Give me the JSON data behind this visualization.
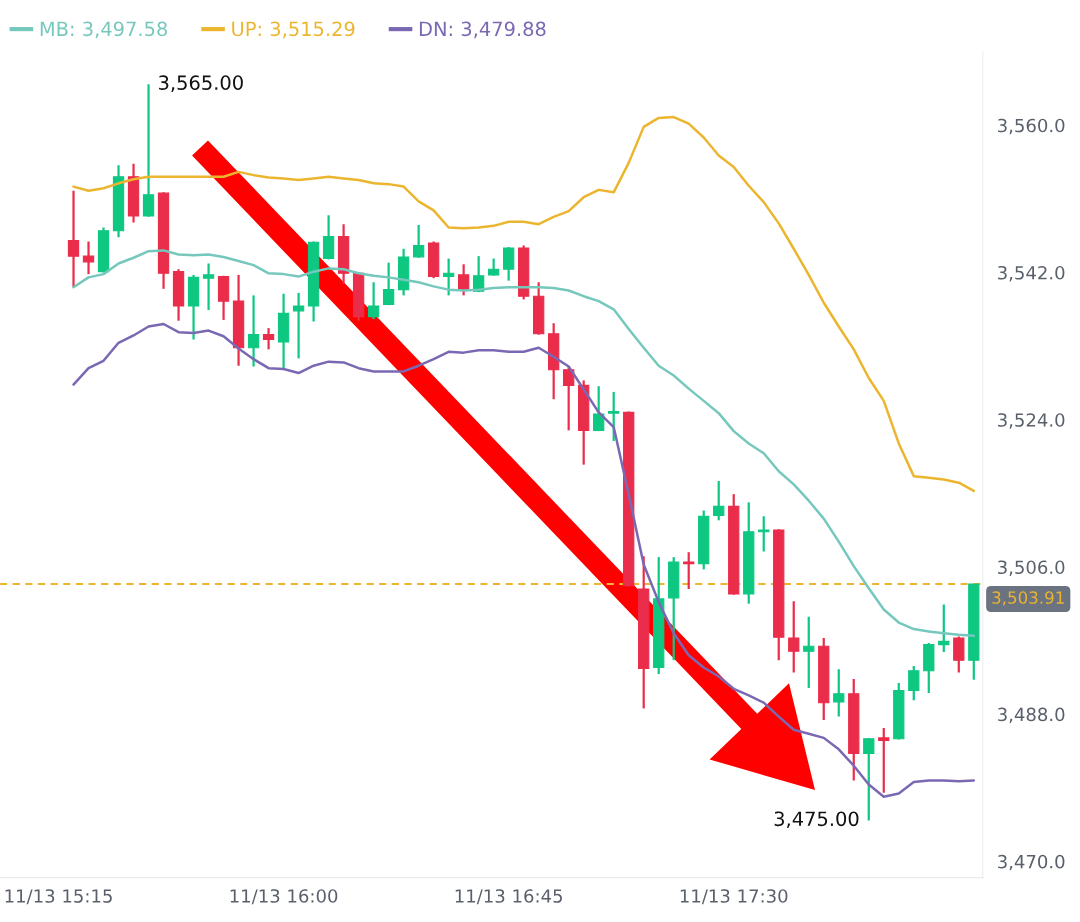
{
  "chart_data": {
    "type": "candlestick",
    "categories": [
      "11/13 15:15",
      null,
      null,
      null,
      null,
      null,
      null,
      null,
      null,
      null,
      null,
      null,
      null,
      null,
      null,
      "11/13 16:00",
      null,
      null,
      null,
      null,
      null,
      null,
      null,
      null,
      null,
      null,
      null,
      null,
      null,
      null,
      "11/13 16:45",
      null,
      null,
      null,
      null,
      null,
      null,
      null,
      null,
      null,
      null,
      null,
      null,
      null,
      null,
      "11/13 17:30",
      null,
      null,
      null,
      null,
      null,
      null,
      null,
      null,
      null,
      null,
      null,
      null,
      null,
      null,
      null,
      null
    ],
    "ohlc": [
      null,
      [
        3545.9,
        3552.0,
        3540.2,
        3544.0
      ],
      [
        3544.0,
        3545.8,
        3541.8,
        3543.3
      ],
      [
        3542.1,
        3547.5,
        3542.0,
        3547.1
      ],
      [
        3547.1,
        3555.1,
        3546.3,
        3553.7
      ],
      [
        3553.7,
        3555.3,
        3548.1,
        3548.9
      ],
      [
        3548.9,
        3565.0,
        3548.8,
        3551.5
      ],
      [
        3551.7,
        3551.8,
        3540.0,
        3541.9
      ],
      [
        3542.1,
        3542.4,
        3536.1,
        3537.9
      ],
      [
        3537.9,
        3541.7,
        3533.8,
        3541.4
      ],
      [
        3541.3,
        3543.1,
        3537.4,
        3541.7
      ],
      [
        3541.5,
        3541.6,
        3536.2,
        3538.5
      ],
      [
        3538.5,
        3541.7,
        3530.6,
        3532.8
      ],
      [
        3532.8,
        3539.2,
        3530.5,
        3534.4
      ],
      [
        3534.4,
        3535.2,
        3532.6,
        3533.8
      ],
      [
        3533.5,
        3539.4,
        3530.3,
        3537.0
      ],
      [
        3537.3,
        3539.5,
        3531.5,
        3537.9
      ],
      [
        3537.9,
        3545.8,
        3536.0,
        3545.7
      ],
      [
        3543.7,
        3549.0,
        3543.6,
        3546.4
      ],
      [
        3546.4,
        3547.9,
        3540.6,
        3541.9
      ],
      [
        3541.9,
        3542.0,
        3536.1,
        3536.6
      ],
      [
        3536.6,
        3540.8,
        3536.3,
        3537.9
      ],
      [
        3538.1,
        3543.2,
        3538.0,
        3539.9
      ],
      [
        3539.9,
        3544.9,
        3539.2,
        3543.9
      ],
      [
        3543.9,
        3547.8,
        3543.8,
        3545.3
      ],
      [
        3545.6,
        3545.8,
        3541.3,
        3541.5
      ],
      [
        3541.5,
        3543.7,
        3539.2,
        3541.9
      ],
      [
        3541.7,
        3543.0,
        3539.2,
        3539.9
      ],
      [
        3539.7,
        3544.0,
        3539.6,
        3541.6
      ],
      [
        3541.7,
        3543.7,
        3541.6,
        3542.4
      ],
      [
        3542.4,
        3545.1,
        3541.0,
        3545.0
      ],
      [
        3545.0,
        3545.3,
        3538.7,
        3539.1
      ],
      [
        3539.1,
        3540.8,
        3534.4,
        3534.5
      ],
      [
        3534.5,
        3535.8,
        3526.5,
        3530.1
      ],
      [
        3530.1,
        3530.5,
        3522.7,
        3528.2
      ],
      [
        3528.2,
        3528.8,
        3518.5,
        3522.7
      ],
      [
        3522.7,
        3528.1,
        3522.6,
        3524.7
      ],
      [
        3524.8,
        3527.4,
        3521.4,
        3525.0
      ],
      [
        3524.9,
        3525.0,
        3503.6,
        3503.7
      ],
      [
        3503.3,
        3507.3,
        3488.7,
        3493.6
      ],
      [
        3493.7,
        3507.2,
        3492.9,
        3502.1
      ],
      [
        3502.2,
        3507.2,
        3494.6,
        3506.6
      ],
      [
        3506.6,
        3507.8,
        3503.3,
        3506.4
      ],
      [
        3506.4,
        3512.9,
        3505.7,
        3512.2
      ],
      [
        3512.3,
        3516.5,
        3511.7,
        3513.4
      ],
      [
        3513.4,
        3514.9,
        3502.6,
        3502.7
      ],
      [
        3502.7,
        3513.9,
        3501.5,
        3510.3
      ],
      [
        3510.3,
        3512.2,
        3507.9,
        3510.5
      ],
      [
        3510.5,
        3510.6,
        3494.6,
        3497.4
      ],
      [
        3497.3,
        3501.8,
        3493.1,
        3495.7
      ],
      [
        3495.7,
        3499.9,
        3491.2,
        3496.3
      ],
      [
        3496.3,
        3497.3,
        3487.3,
        3489.4
      ],
      [
        3489.5,
        3493.5,
        3487.7,
        3490.5
      ],
      [
        3490.5,
        3492.3,
        3479.9,
        3483.2
      ],
      [
        3483.2,
        3485.1,
        3475.0,
        3485.0
      ],
      [
        3485.1,
        3486.3,
        3478.4,
        3484.8
      ],
      [
        3485.0,
        3491.8,
        3484.9,
        3490.9
      ],
      [
        3490.9,
        3493.9,
        3489.7,
        3493.3
      ],
      [
        3493.3,
        3496.7,
        3490.6,
        3496.5
      ],
      [
        3496.5,
        3501.4,
        3495.6,
        3496.9
      ],
      [
        3497.3,
        3497.5,
        3493.1,
        3494.6
      ],
      [
        3494.6,
        3503.91,
        3492.2,
        3503.91
      ]
    ],
    "colors": [
      null,
      "#ea2d4b",
      "#ea2d4b",
      "#0ec882",
      "#0ec882",
      "#ea2d4b",
      "#0ec882",
      "#ea2d4b",
      "#ea2d4b",
      "#0ec882",
      "#0ec882",
      "#ea2d4b",
      "#ea2d4b",
      "#0ec882",
      "#ea2d4b",
      "#0ec882",
      "#0ec882",
      "#0ec882",
      "#0ec882",
      "#ea2d4b",
      "#ea2d4b",
      "#0ec882",
      "#0ec882",
      "#0ec882",
      "#0ec882",
      "#ea2d4b",
      "#0ec882",
      "#ea2d4b",
      "#0ec882",
      "#0ec882",
      "#0ec882",
      "#ea2d4b",
      "#ea2d4b",
      "#ea2d4b",
      "#ea2d4b",
      "#ea2d4b",
      "#0ec882",
      "#0ec882",
      "#ea2d4b",
      "#ea2d4b",
      "#0ec882",
      "#0ec882",
      "#ea2d4b",
      "#0ec882",
      "#0ec882",
      "#ea2d4b",
      "#0ec882",
      "#0ec882",
      "#ea2d4b",
      "#ea2d4b",
      "#0ec882",
      "#ea2d4b",
      "#0ec882",
      "#ea2d4b",
      "#0ec882",
      "#ea2d4b",
      "#0ec882",
      "#0ec882",
      "#0ec882",
      "#0ec882",
      "#ea2d4b",
      "#0ec882"
    ],
    "series": [
      {
        "name": "MB: 3,497.58",
        "type": "line",
        "color": "#76c8bd",
        "values": [
          null,
          3540.2,
          3541.4,
          3541.8,
          3543.1,
          3543.8,
          3544.6,
          3544.7,
          3544.2,
          3544.1,
          3544.2,
          3543.9,
          3543.4,
          3542.9,
          3541.9,
          3541.8,
          3541.5,
          3542.1,
          3542.5,
          3542.4,
          3541.9,
          3541.6,
          3541.4,
          3541.1,
          3540.8,
          3540.3,
          3539.9,
          3539.8,
          3539.9,
          3540.1,
          3540.2,
          3540.2,
          3540.2,
          3540.1,
          3539.8,
          3539.1,
          3538.5,
          3537.5,
          3535.1,
          3532.8,
          3530.6,
          3529.4,
          3527.8,
          3526.3,
          3524.8,
          3522.6,
          3521.1,
          3519.9,
          3517.7,
          3516.1,
          3514.1,
          3511.9,
          3509.1,
          3506.1,
          3503.4,
          3500.8,
          3499.2,
          3498.4,
          3498.1,
          3497.9,
          3497.7,
          3497.58
        ]
      },
      {
        "name": "UP: 3,515.29",
        "type": "line",
        "color": "#ecb52f",
        "values": [
          null,
          3552.5,
          3552.0,
          3552.3,
          3552.9,
          3553.4,
          3553.7,
          3553.7,
          3553.7,
          3553.7,
          3553.7,
          3553.7,
          3554.3,
          3553.9,
          3553.6,
          3553.5,
          3553.3,
          3553.5,
          3553.7,
          3553.5,
          3553.3,
          3552.9,
          3552.8,
          3552.5,
          3550.7,
          3549.6,
          3547.5,
          3547.4,
          3547.5,
          3547.7,
          3548.2,
          3548.2,
          3547.9,
          3548.8,
          3549.5,
          3551.2,
          3552.1,
          3551.8,
          3555.4,
          3559.8,
          3560.9,
          3561.0,
          3560.2,
          3558.5,
          3556.3,
          3554.9,
          3552.6,
          3550.6,
          3548.0,
          3544.9,
          3541.7,
          3538.3,
          3535.4,
          3532.6,
          3529.1,
          3526.3,
          3521.1,
          3517.1,
          3516.9,
          3516.7,
          3516.3,
          3515.29
        ]
      },
      {
        "name": "DN: 3,479.88",
        "type": "line",
        "color": "#7b68b3",
        "values": [
          null,
          3528.3,
          3530.3,
          3531.2,
          3533.4,
          3534.3,
          3535.4,
          3535.7,
          3534.7,
          3534.6,
          3534.9,
          3534.2,
          3532.7,
          3531.4,
          3530.3,
          3530.2,
          3529.7,
          3530.6,
          3531.1,
          3531.0,
          3530.3,
          3529.9,
          3529.9,
          3529.9,
          3530.6,
          3531.4,
          3532.3,
          3532.2,
          3532.5,
          3532.5,
          3532.3,
          3532.3,
          3532.8,
          3531.7,
          3530.5,
          3527.7,
          3524.9,
          3523.1,
          3514.9,
          3506.3,
          3501.7,
          3497.9,
          3495.2,
          3493.7,
          3492.6,
          3491.1,
          3490.3,
          3489.4,
          3487.7,
          3486.1,
          3485.6,
          3485.1,
          3483.7,
          3481.7,
          3479.4,
          3477.9,
          3478.3,
          3479.7,
          3479.9,
          3479.9,
          3479.8,
          3479.88
        ]
      }
    ],
    "ylim": [
      3468,
      3569
    ],
    "yticks": [
      {
        "value": 3470,
        "label": "3,470.0"
      },
      {
        "value": 3488,
        "label": "3,488.0"
      },
      {
        "value": 3506,
        "label": "3,506.0"
      },
      {
        "value": 3524,
        "label": "3,524.0"
      },
      {
        "value": 3542,
        "label": "3,542.0"
      },
      {
        "value": 3560,
        "label": "3,560.0"
      }
    ],
    "ref_lines": [
      {
        "axis": "y",
        "value": 3503.91,
        "label": "3,503.91",
        "color": "#ecb52f",
        "line_style": "dashed"
      }
    ],
    "annotations": [
      "3,565.00",
      "3,475.00"
    ],
    "legend": "top left"
  }
}
